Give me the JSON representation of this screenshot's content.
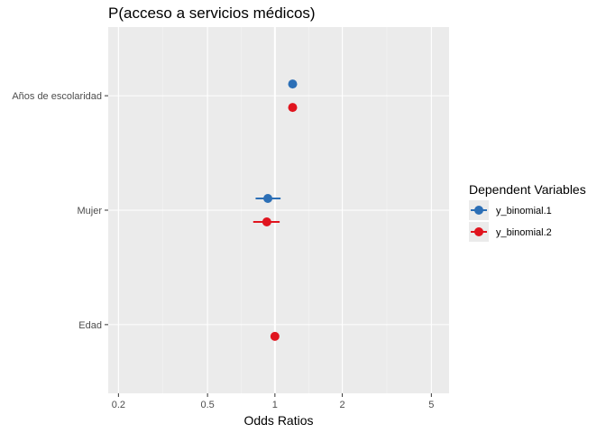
{
  "chart_data": {
    "type": "scatter",
    "title": "P(acceso a servicios médicos)",
    "xlabel": "Odds Ratios",
    "ylabel": "",
    "x_scale": "log",
    "xlim": [
      0.18,
      6.0
    ],
    "x_major_ticks": [
      {
        "value": 0.2,
        "label": "0.2"
      },
      {
        "value": 0.5,
        "label": "0.5"
      },
      {
        "value": 1,
        "label": "1"
      },
      {
        "value": 2,
        "label": "2"
      },
      {
        "value": 5,
        "label": "5"
      }
    ],
    "x_minor_ticks": [
      0.316,
      0.707,
      1.414,
      3.162
    ],
    "reference_line": 1,
    "categories": [
      "Años de escolaridad",
      "Mujer",
      "Edad"
    ],
    "grid": true,
    "legend": {
      "title": "Dependent Variables",
      "placement": "right"
    },
    "series": [
      {
        "name": "y_binomial.1",
        "color": "#2c6fb6",
        "points": [
          {
            "category": "Años de escolaridad",
            "estimate": 1.2,
            "low": 1.19,
            "high": 1.21
          },
          {
            "category": "Mujer",
            "estimate": 0.93,
            "low": 0.82,
            "high": 1.06
          }
        ]
      },
      {
        "name": "y_binomial.2",
        "color": "#e0141e",
        "points": [
          {
            "category": "Años de escolaridad",
            "estimate": 1.2,
            "low": 1.18,
            "high": 1.22
          },
          {
            "category": "Mujer",
            "estimate": 0.92,
            "low": 0.8,
            "high": 1.05
          },
          {
            "category": "Edad",
            "estimate": 1.0,
            "low": 0.995,
            "high": 1.005
          }
        ]
      }
    ]
  }
}
